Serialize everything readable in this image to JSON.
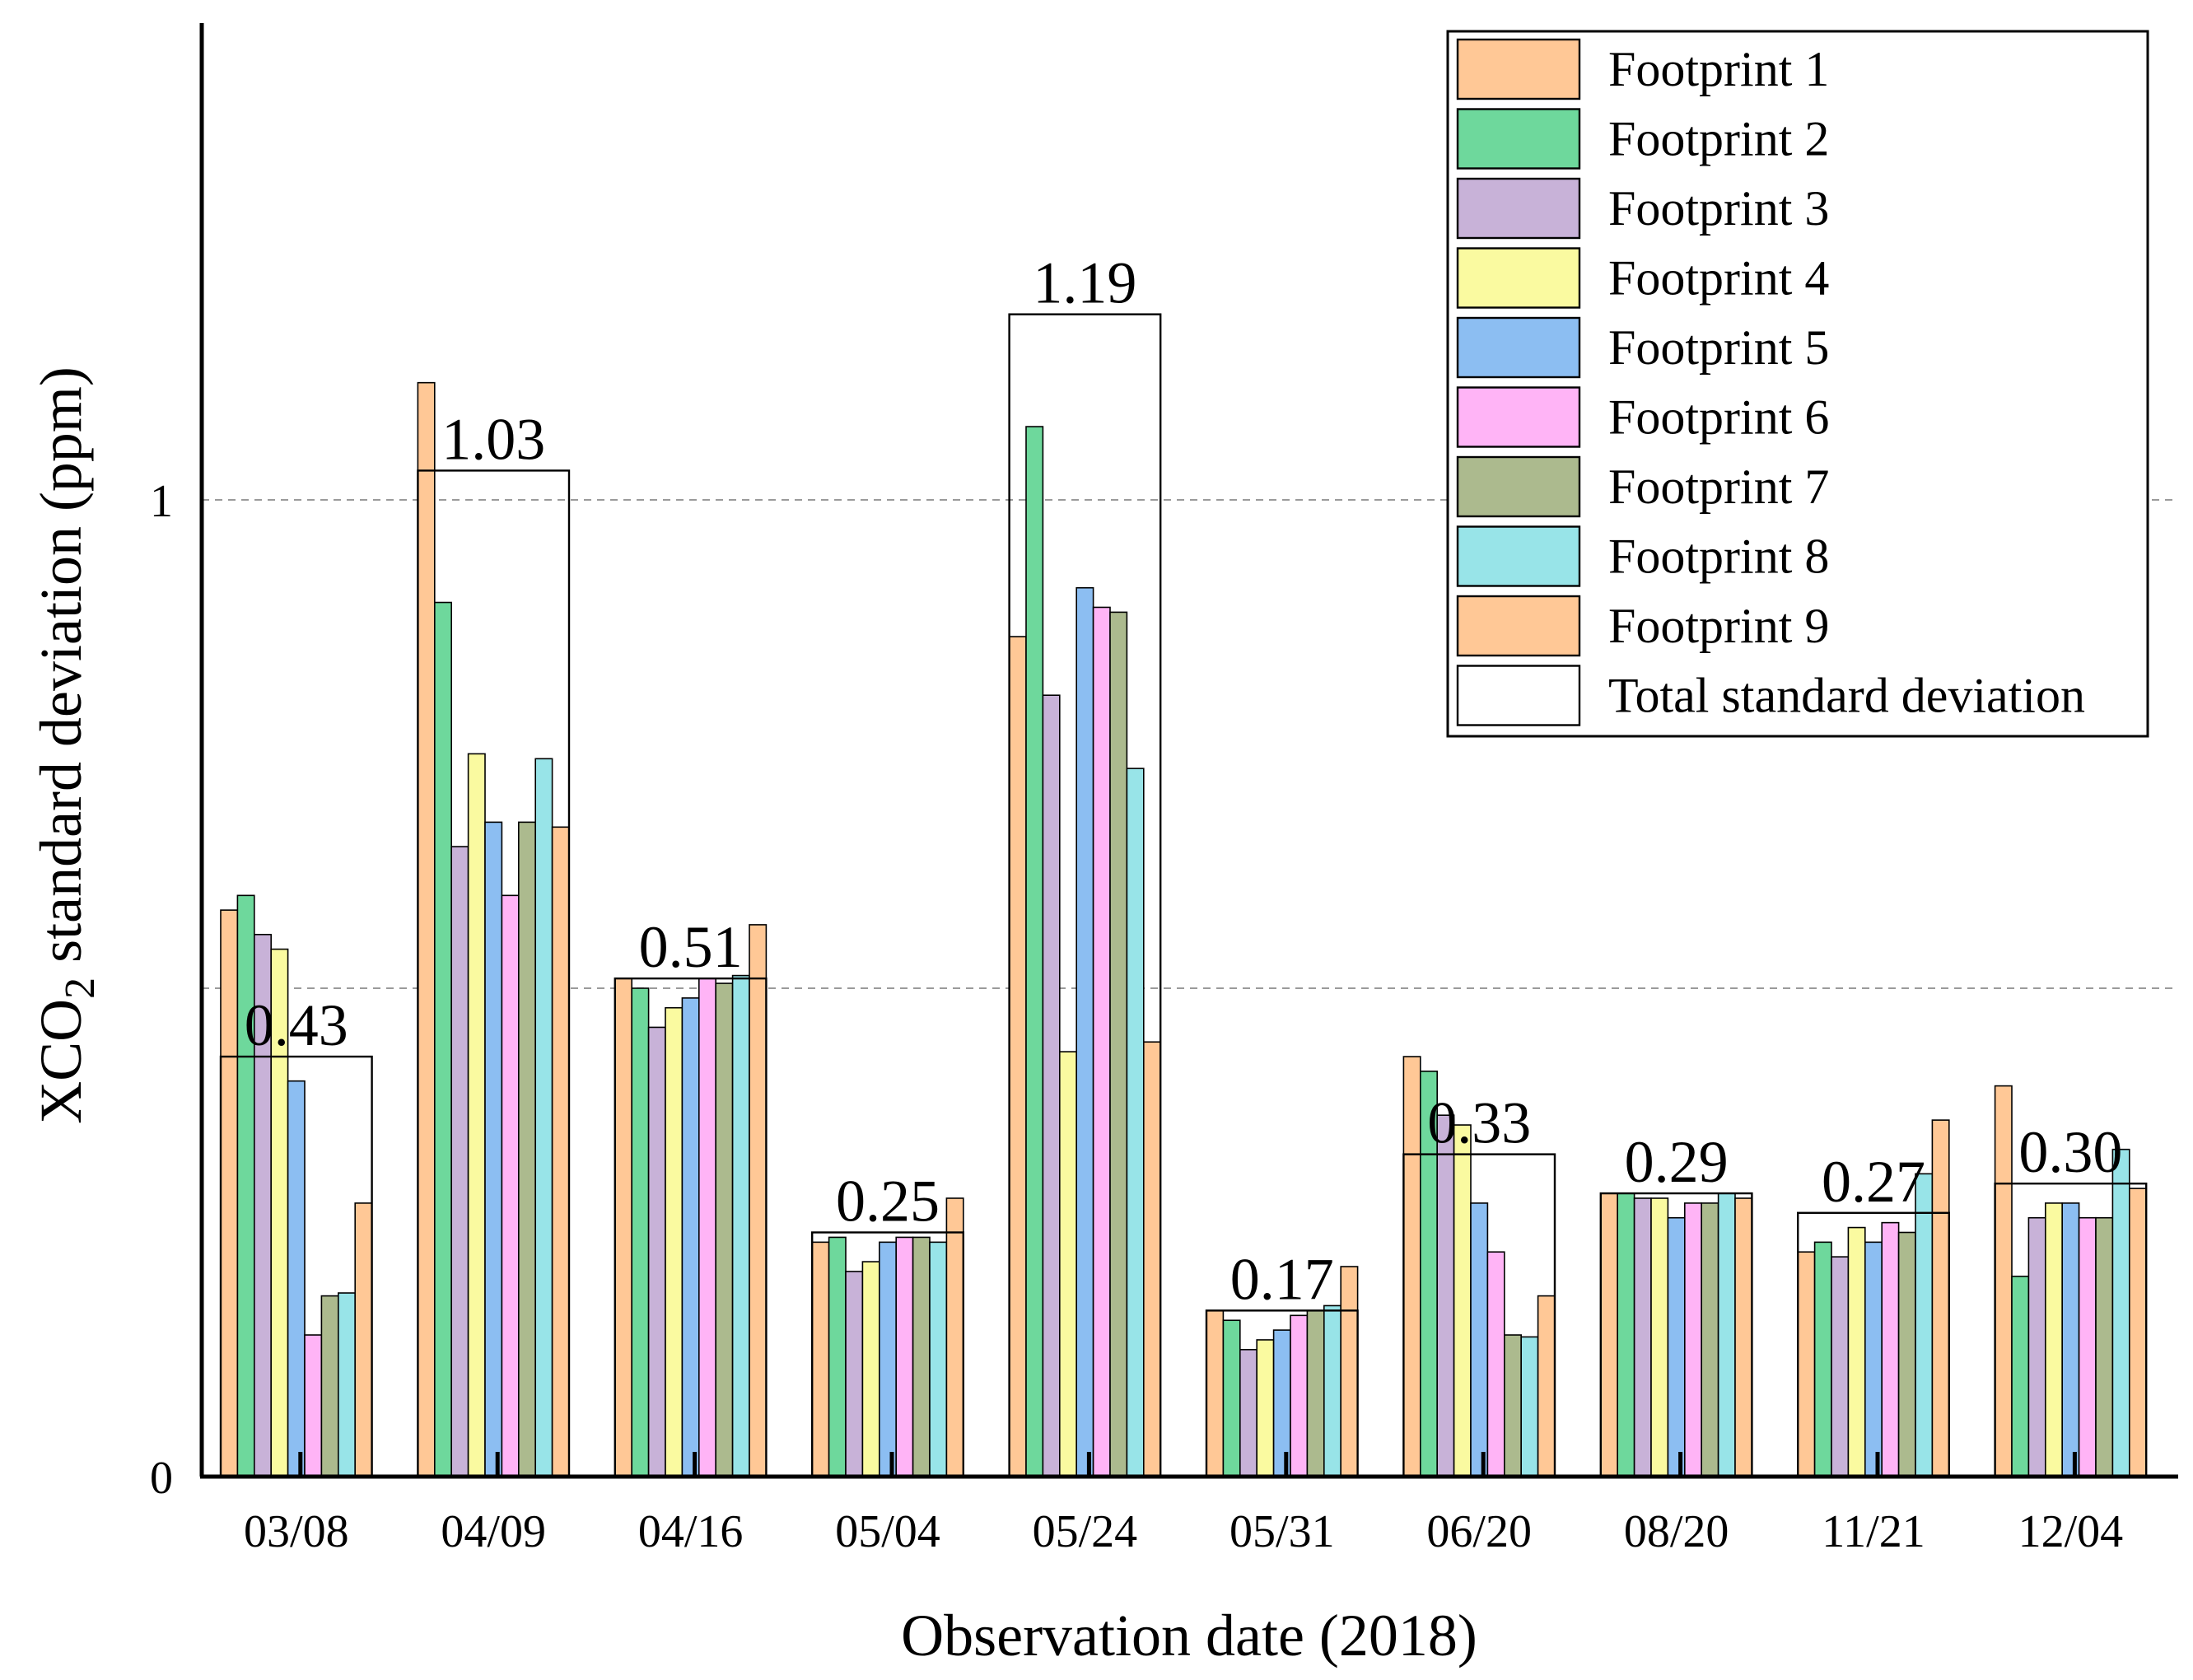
{
  "chart_data": {
    "type": "bar",
    "title": "",
    "xlabel": "Observation date (2018)",
    "ylabel_prefix": "XCO",
    "ylabel_subscript": "2",
    "ylabel_suffix": " standard deviation (ppm)",
    "ylim": [
      0,
      1.5
    ],
    "yticks": [
      {
        "value": 0,
        "label": "0"
      },
      {
        "value": 1,
        "label": "1"
      }
    ],
    "grid_lines": [
      0.5,
      1.0
    ],
    "legend_position": "top-right",
    "categories": [
      "03/08",
      "04/09",
      "04/16",
      "05/04",
      "05/24",
      "05/31",
      "06/20",
      "08/20",
      "11/21",
      "12/04"
    ],
    "series": [
      {
        "name": "Footprint 1",
        "color": "#ffc896",
        "values": [
          0.58,
          1.12,
          0.51,
          0.24,
          0.86,
          0.17,
          0.43,
          0.29,
          0.23,
          0.4
        ]
      },
      {
        "name": "Footprint 2",
        "color": "#6ed89c",
        "values": [
          0.595,
          0.895,
          0.5,
          0.245,
          1.075,
          0.16,
          0.415,
          0.29,
          0.24,
          0.205
        ]
      },
      {
        "name": "Footprint 3",
        "color": "#c8b2d8",
        "values": [
          0.555,
          0.645,
          0.46,
          0.21,
          0.8,
          0.13,
          0.37,
          0.285,
          0.225,
          0.265
        ]
      },
      {
        "name": "Footprint 4",
        "color": "#fafaa0",
        "values": [
          0.54,
          0.74,
          0.48,
          0.22,
          0.435,
          0.14,
          0.36,
          0.285,
          0.255,
          0.28
        ]
      },
      {
        "name": "Footprint 5",
        "color": "#8cbef2",
        "values": [
          0.405,
          0.67,
          0.49,
          0.24,
          0.91,
          0.15,
          0.28,
          0.265,
          0.24,
          0.28
        ]
      },
      {
        "name": "Footprint 6",
        "color": "#ffb4f6",
        "values": [
          0.145,
          0.595,
          0.51,
          0.245,
          0.89,
          0.165,
          0.23,
          0.28,
          0.26,
          0.265
        ]
      },
      {
        "name": "Footprint 7",
        "color": "#acba8e",
        "values": [
          0.185,
          0.67,
          0.505,
          0.245,
          0.885,
          0.17,
          0.145,
          0.28,
          0.25,
          0.265
        ]
      },
      {
        "name": "Footprint 8",
        "color": "#98e4e8",
        "values": [
          0.188,
          0.735,
          0.513,
          0.24,
          0.725,
          0.175,
          0.143,
          0.29,
          0.31,
          0.335
        ]
      },
      {
        "name": "Footprint 9",
        "color": "#ffc896",
        "values": [
          0.28,
          0.665,
          0.565,
          0.285,
          0.445,
          0.215,
          0.185,
          0.285,
          0.365,
          0.295
        ]
      }
    ],
    "total_series": {
      "name": "Total standard deviation",
      "values": [
        0.43,
        1.03,
        0.51,
        0.25,
        1.19,
        0.17,
        0.33,
        0.29,
        0.27,
        0.3
      ],
      "labels": [
        "0.43",
        "1.03",
        "0.51",
        "0.25",
        "1.19",
        "0.17",
        "0.33",
        "0.29",
        "0.27",
        "0.30"
      ]
    }
  }
}
